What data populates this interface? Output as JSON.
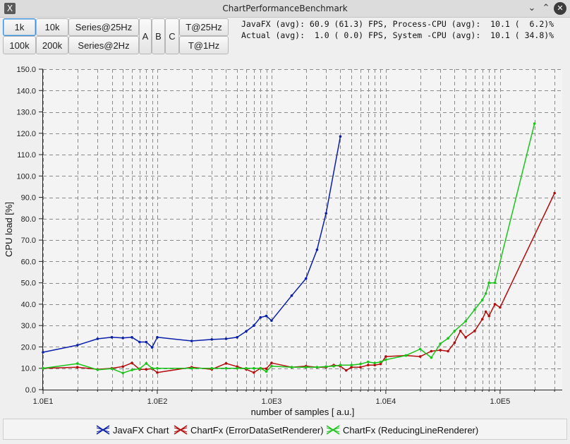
{
  "window": {
    "title": "ChartPerformanceBenchmark",
    "app_icon": "X"
  },
  "toolbar": {
    "buttons": [
      {
        "label": "1k",
        "selected": true
      },
      {
        "label": "10k"
      },
      {
        "label": "Series@25Hz"
      },
      {
        "label": "A"
      },
      {
        "label": "B"
      },
      {
        "label": "C"
      },
      {
        "label": "T@25Hz"
      },
      {
        "label": "100k"
      },
      {
        "label": "200k"
      },
      {
        "label": "Series@2Hz"
      },
      {
        "label": "T@1Hz"
      }
    ]
  },
  "stats": {
    "line1": "JavaFX (avg): 60.9 (61.3) FPS, Process-CPU (avg):  10.1 (  6.2)%",
    "line2": "Actual (avg):  1.0 ( 0.0) FPS, System -CPU (avg):  10.1 ( 34.8)%"
  },
  "chart_data": {
    "type": "line",
    "xlabel": "number of samples [ a.u.]",
    "ylabel": "CPU load [%]",
    "x_scale": "log",
    "xlim": [
      10,
      350000
    ],
    "ylim": [
      0,
      150
    ],
    "x_ticks": [
      {
        "value": 10,
        "label": "1.0E1"
      },
      {
        "value": 100,
        "label": "1.0E2"
      },
      {
        "value": 1000,
        "label": "1.0E3"
      },
      {
        "value": 10000,
        "label": "1.0E4"
      },
      {
        "value": 100000,
        "label": "1.0E5"
      }
    ],
    "y_ticks": [
      "0.0",
      "10.0",
      "20.0",
      "30.0",
      "40.0",
      "50.0",
      "60.0",
      "70.0",
      "80.0",
      "90.0",
      "100.0",
      "110.0",
      "120.0",
      "130.0",
      "140.0",
      "150.0"
    ],
    "grid": true,
    "legend_position": "bottom",
    "series": [
      {
        "name": "JavaFX Chart",
        "color": "#0a1fa8",
        "x": [
          10,
          20,
          30,
          40,
          50,
          60,
          70,
          80,
          90,
          100,
          200,
          300,
          400,
          500,
          600,
          700,
          800,
          900,
          1000,
          1500,
          2000,
          2500,
          3000,
          4000
        ],
        "y": [
          17.5,
          20.8,
          23.8,
          24.5,
          24.2,
          24.5,
          22.3,
          22.3,
          19.8,
          24.5,
          22.8,
          23.5,
          23.8,
          24.5,
          27.3,
          30,
          33.8,
          34.5,
          32.3,
          44,
          52,
          65.5,
          82.5,
          118.5
        ]
      },
      {
        "name": "ChartFx (ErrorDataSetRenderer)",
        "color": "#b30c0c",
        "x": [
          10,
          20,
          30,
          40,
          50,
          60,
          70,
          80,
          90,
          100,
          200,
          300,
          400,
          500,
          600,
          700,
          800,
          900,
          1000,
          1500,
          2000,
          2500,
          3000,
          3500,
          4000,
          4500,
          5000,
          6000,
          7000,
          8000,
          9000,
          10000,
          15000,
          20000,
          25000,
          30000,
          35000,
          40000,
          45000,
          50000,
          60000,
          70000,
          75000,
          80000,
          90000,
          100000,
          300000
        ],
        "y": [
          10,
          10.5,
          9.5,
          10,
          10.8,
          12.5,
          9.5,
          9.5,
          9.8,
          8,
          10.5,
          9.5,
          12.3,
          10.8,
          9.5,
          8,
          10,
          9.8,
          12.5,
          10.5,
          11,
          10.5,
          10.5,
          11.5,
          11,
          9,
          10.5,
          10.5,
          11.5,
          11.5,
          12,
          15.5,
          16,
          15.5,
          18,
          18.5,
          18,
          22,
          27.5,
          24.5,
          27.5,
          33,
          36.5,
          34.5,
          40,
          38.5,
          92
        ]
      },
      {
        "name": "ChartFx (ReducingLineRenderer)",
        "color": "#1bc41b",
        "x": [
          10,
          20,
          30,
          40,
          50,
          60,
          70,
          80,
          90,
          100,
          200,
          300,
          400,
          500,
          600,
          700,
          800,
          900,
          1000,
          1500,
          2000,
          2500,
          3000,
          3500,
          4000,
          5000,
          6000,
          7000,
          8000,
          9000,
          10000,
          15000,
          20000,
          25000,
          30000,
          35000,
          40000,
          50000,
          60000,
          70000,
          75000,
          80000,
          90000,
          200000
        ],
        "y": [
          10,
          12.2,
          9.3,
          9.8,
          7.8,
          9.2,
          9.8,
          12.3,
          10,
          10,
          10,
          10,
          10,
          10,
          10,
          10,
          10,
          8.5,
          11,
          10.5,
          10.5,
          10.5,
          10.8,
          11,
          11.5,
          11.5,
          12,
          13,
          12.5,
          13,
          14,
          16,
          19,
          15,
          21.5,
          24,
          27.5,
          32,
          37.5,
          42,
          45,
          50,
          50,
          124.5
        ]
      }
    ]
  },
  "legend": {
    "items": [
      "JavaFX Chart",
      "ChartFx (ErrorDataSetRenderer)",
      "ChartFx (ReducingLineRenderer)"
    ]
  }
}
